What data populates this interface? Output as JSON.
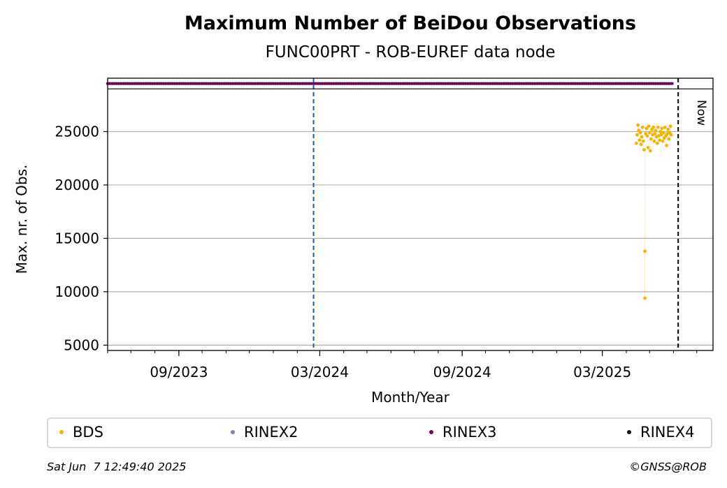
{
  "chart_data": {
    "type": "scatter",
    "title": "Maximum Number of BeiDou Observations",
    "subtitle": "FUNC00PRT - ROB-EUREF data node",
    "xlabel": "Month/Year",
    "ylabel": "Max. nr. of Obs.",
    "xlim": [
      "2023-06-01",
      "2025-07-22"
    ],
    "ylim": [
      4500,
      30000
    ],
    "x_ticks": [
      {
        "date": "2023-09-01",
        "label": "09/2023"
      },
      {
        "date": "2024-03-01",
        "label": "03/2024"
      },
      {
        "date": "2024-09-01",
        "label": "09/2024"
      },
      {
        "date": "2025-03-01",
        "label": "03/2025"
      }
    ],
    "y_ticks": [
      {
        "value": 5000,
        "label": "5000"
      },
      {
        "value": 10000,
        "label": "10000"
      },
      {
        "value": 15000,
        "label": "15000"
      },
      {
        "value": 20000,
        "label": "20000"
      },
      {
        "value": 25000,
        "label": "25000"
      }
    ],
    "grid": "y",
    "reference_lines": [
      {
        "date": "2024-02-22",
        "color": "#1f5ea8",
        "style": "dashed"
      },
      {
        "date": "2025-06-07",
        "color": "#000000",
        "style": "dashed",
        "label": "Now"
      }
    ],
    "rinex_band": {
      "series": "RINEX3",
      "start": "2023-06-01",
      "end": "2025-06-01"
    },
    "series": [
      {
        "name": "BDS",
        "color": "#f5b400",
        "points": [
          {
            "x": "2025-04-14",
            "y": 23900
          },
          {
            "x": "2025-04-15",
            "y": 24700
          },
          {
            "x": "2025-04-16",
            "y": 25600
          },
          {
            "x": "2025-04-17",
            "y": 25100
          },
          {
            "x": "2025-04-18",
            "y": 24200
          },
          {
            "x": "2025-04-19",
            "y": 24900
          },
          {
            "x": "2025-04-20",
            "y": 23800
          },
          {
            "x": "2025-04-21",
            "y": 24500
          },
          {
            "x": "2025-04-22",
            "y": 25400
          },
          {
            "x": "2025-04-23",
            "y": 24100
          },
          {
            "x": "2025-04-24",
            "y": 23300
          },
          {
            "x": "2025-04-25",
            "y": 13800
          },
          {
            "x": "2025-04-25",
            "y": 9400
          },
          {
            "x": "2025-04-26",
            "y": 24800
          },
          {
            "x": "2025-04-27",
            "y": 25300
          },
          {
            "x": "2025-04-28",
            "y": 24600
          },
          {
            "x": "2025-04-29",
            "y": 23500
          },
          {
            "x": "2025-04-30",
            "y": 25500
          },
          {
            "x": "2025-05-01",
            "y": 24900
          },
          {
            "x": "2025-05-02",
            "y": 23200
          },
          {
            "x": "2025-05-03",
            "y": 24300
          },
          {
            "x": "2025-05-04",
            "y": 25200
          },
          {
            "x": "2025-05-05",
            "y": 24700
          },
          {
            "x": "2025-05-06",
            "y": 25400
          },
          {
            "x": "2025-05-07",
            "y": 24100
          },
          {
            "x": "2025-05-08",
            "y": 24800
          },
          {
            "x": "2025-05-09",
            "y": 25100
          },
          {
            "x": "2025-05-10",
            "y": 24500
          },
          {
            "x": "2025-05-11",
            "y": 23900
          },
          {
            "x": "2025-05-12",
            "y": 25400
          },
          {
            "x": "2025-05-13",
            "y": 24600
          },
          {
            "x": "2025-05-14",
            "y": 24200
          },
          {
            "x": "2025-05-15",
            "y": 25000
          },
          {
            "x": "2025-05-16",
            "y": 24700
          },
          {
            "x": "2025-05-17",
            "y": 25300
          },
          {
            "x": "2025-05-18",
            "y": 24100
          },
          {
            "x": "2025-05-19",
            "y": 24900
          },
          {
            "x": "2025-05-20",
            "y": 24400
          },
          {
            "x": "2025-05-21",
            "y": 25400
          },
          {
            "x": "2025-05-22",
            "y": 24600
          },
          {
            "x": "2025-05-23",
            "y": 23700
          },
          {
            "x": "2025-05-24",
            "y": 24800
          },
          {
            "x": "2025-05-25",
            "y": 25200
          },
          {
            "x": "2025-05-26",
            "y": 24300
          },
          {
            "x": "2025-05-27",
            "y": 24900
          },
          {
            "x": "2025-05-28",
            "y": 25500
          },
          {
            "x": "2025-05-29",
            "y": 24700
          }
        ]
      },
      {
        "name": "RINEX2",
        "color": "#7f7fbf",
        "points": []
      },
      {
        "name": "RINEX3",
        "color": "#6a0a5e",
        "points": []
      },
      {
        "name": "RINEX4",
        "color": "#1e0a1e",
        "points": []
      }
    ],
    "legend": {
      "placement": "bottom",
      "entries": [
        {
          "label": "BDS",
          "color": "#f5b400"
        },
        {
          "label": "RINEX2",
          "color": "#7f7fbf"
        },
        {
          "label": "RINEX3",
          "color": "#6a0a5e"
        },
        {
          "label": "RINEX4",
          "color": "#1e0a1e"
        }
      ]
    }
  },
  "footer": {
    "timestamp": "Sat Jun  7 12:49:40 2025",
    "copyright": "©GNSS@ROB"
  }
}
